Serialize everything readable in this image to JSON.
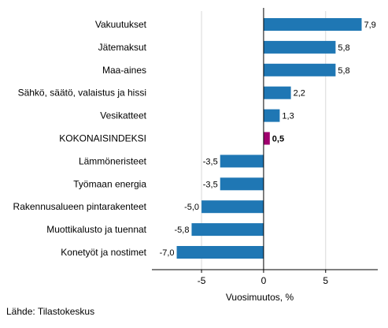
{
  "chart_data": {
    "type": "bar",
    "orientation": "horizontal",
    "categories": [
      "Vakuutukset",
      "Jätemaksut",
      "Maa-aines",
      "Sähkö, säätö, valaistus ja hissi",
      "Vesikatteet",
      "KOKONAISINDEKSI",
      "Lämmöneristeet",
      "Työmaan energia",
      "Rakennusalueen pintarakenteet",
      "Muottikalusto ja tuennat",
      "Konetyöt ja nostimet"
    ],
    "values": [
      7.9,
      5.8,
      5.8,
      2.2,
      1.3,
      0.5,
      -3.5,
      -3.5,
      -5.0,
      -5.8,
      -7.0
    ],
    "value_labels": [
      "7,9",
      "5,8",
      "5,8",
      "2,2",
      "1,3",
      "0,5",
      "-3,5",
      "-3,5",
      "-5,0",
      "-5,8",
      "-7,0"
    ],
    "highlight_category": "KOKONAISINDEKSI",
    "colors": {
      "bar": "#1f77b4",
      "highlight": "#a0006e",
      "grid": "#d9d9d9",
      "axis": "#000000"
    },
    "xlabel": "Vuosimuutos, %",
    "xlim": [
      -9,
      9.2
    ],
    "xticks": [
      -5,
      0,
      5
    ],
    "xtick_labels": [
      "-5",
      "0",
      "5"
    ],
    "grid": true
  },
  "source_label": "Lähde: Tilastokeskus"
}
